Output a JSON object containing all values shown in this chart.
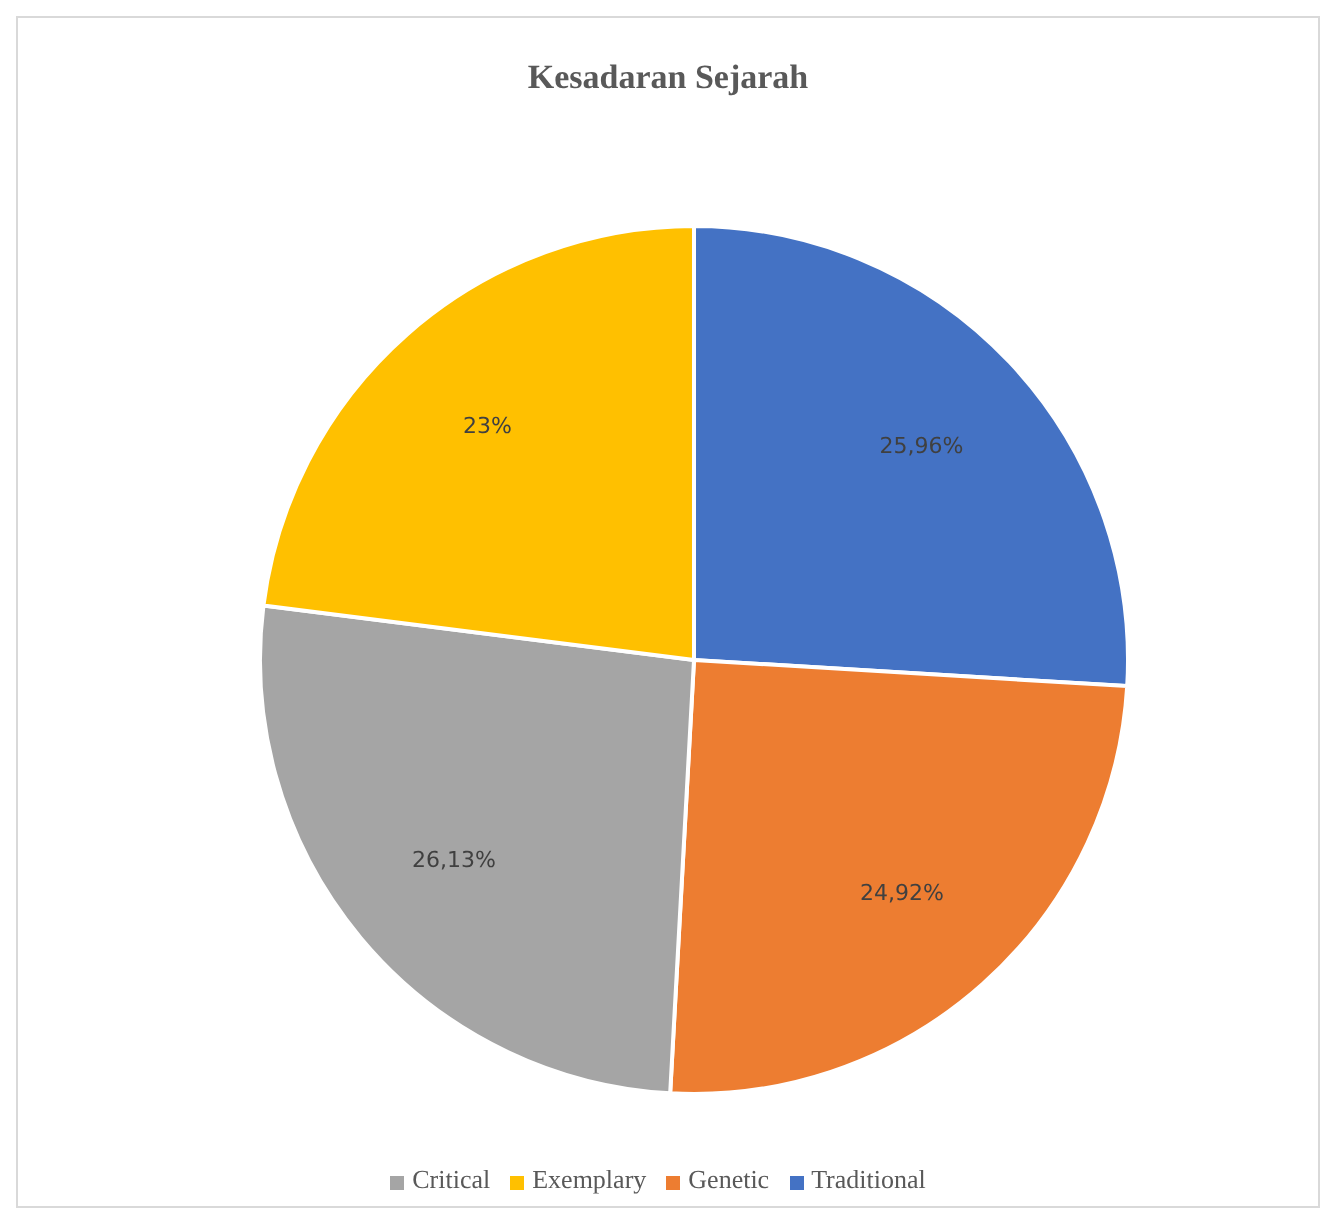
{
  "chart_data": {
    "type": "pie",
    "title": "Kesadaran Sejarah",
    "categories": [
      "Traditional",
      "Genetic",
      "Critical",
      "Exemplary"
    ],
    "values": [
      25.96,
      24.92,
      26.13,
      23
    ],
    "colors": [
      "#4472c4",
      "#ed7d31",
      "#a5a5a5",
      "#ffc000"
    ],
    "value_labels": [
      "25,96%",
      "24,92%",
      "26,13%",
      "23%"
    ],
    "legend": "bottom"
  }
}
